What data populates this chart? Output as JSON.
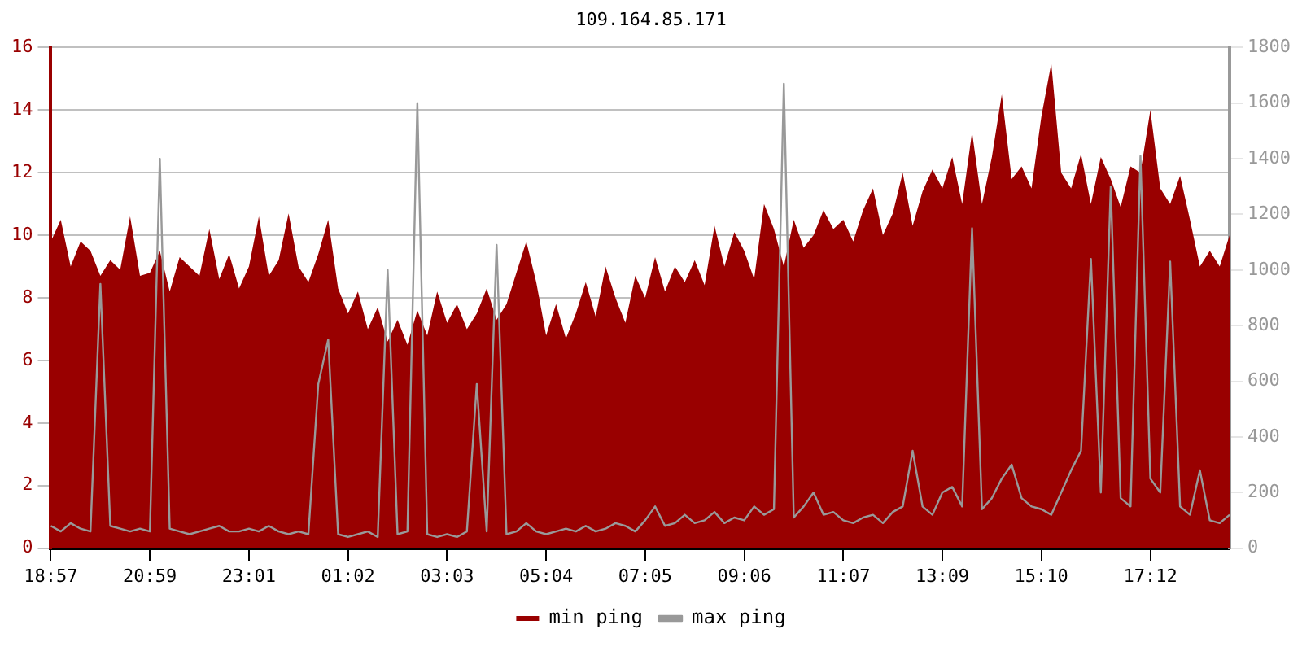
{
  "chart_data": {
    "type": "area",
    "title": "109.164.85.171",
    "categories": [
      "18:57",
      null,
      null,
      null,
      null,
      null,
      null,
      null,
      null,
      null,
      "20:59",
      null,
      null,
      null,
      null,
      null,
      null,
      null,
      null,
      null,
      "23:01",
      null,
      null,
      null,
      null,
      null,
      null,
      null,
      null,
      null,
      "01:02",
      null,
      null,
      null,
      null,
      null,
      null,
      null,
      null,
      null,
      "03:03",
      null,
      null,
      null,
      null,
      null,
      null,
      null,
      null,
      null,
      "05:04",
      null,
      null,
      null,
      null,
      null,
      null,
      null,
      null,
      null,
      "07:05",
      null,
      null,
      null,
      null,
      null,
      null,
      null,
      null,
      null,
      "09:06",
      null,
      null,
      null,
      null,
      null,
      null,
      null,
      null,
      null,
      "11:07",
      null,
      null,
      null,
      null,
      null,
      null,
      null,
      null,
      null,
      "13:09",
      null,
      null,
      null,
      null,
      null,
      null,
      null,
      null,
      null,
      "15:10",
      null,
      null,
      null,
      null,
      null,
      null,
      null,
      null,
      null,
      null,
      "17:12",
      null,
      null,
      null,
      null,
      null,
      null,
      null,
      null
    ],
    "series": [
      {
        "name": "min ping",
        "color": "#990000",
        "values": [
          9.8,
          10.5,
          9.0,
          9.8,
          9.5,
          8.7,
          9.2,
          8.9,
          10.6,
          8.7,
          8.8,
          9.5,
          8.2,
          9.3,
          9.0,
          8.7,
          10.2,
          8.6,
          9.4,
          8.3,
          9.0,
          10.6,
          8.7,
          9.2,
          10.7,
          9.0,
          8.5,
          9.4,
          10.5,
          8.3,
          7.5,
          8.2,
          7.0,
          7.7,
          6.6,
          7.3,
          6.5,
          7.6,
          6.8,
          8.2,
          7.2,
          7.8,
          7.0,
          7.5,
          8.3,
          7.3,
          7.8,
          8.8,
          9.8,
          8.5,
          6.8,
          7.8,
          6.7,
          7.5,
          8.5,
          7.4,
          9.0,
          8.0,
          7.2,
          8.7,
          8.0,
          9.3,
          8.2,
          9.0,
          8.5,
          9.2,
          8.4,
          10.3,
          9.0,
          10.1,
          9.5,
          8.6,
          11.0,
          10.2,
          9.0,
          10.5,
          9.6,
          10.0,
          10.8,
          10.2,
          10.5,
          9.8,
          10.8,
          11.5,
          10.0,
          10.7,
          12.0,
          10.3,
          11.4,
          12.1,
          11.5,
          12.5,
          11.0,
          13.3,
          11.0,
          12.5,
          14.5,
          11.8,
          12.2,
          11.5,
          13.8,
          15.5,
          12.0,
          11.5,
          12.6,
          11.0,
          12.5,
          11.8,
          10.9,
          12.2,
          12.0,
          14.0,
          11.5,
          11.0,
          11.9,
          10.5,
          9.0,
          9.5,
          9.0,
          10.0
        ]
      },
      {
        "name": "max ping",
        "type": "line",
        "axis": "y2",
        "color": "#999999",
        "values": [
          80,
          60,
          90,
          70,
          60,
          950,
          80,
          70,
          60,
          70,
          60,
          1400,
          70,
          60,
          50,
          60,
          70,
          80,
          60,
          60,
          70,
          60,
          80,
          60,
          50,
          60,
          50,
          590,
          750,
          50,
          40,
          50,
          60,
          40,
          1000,
          50,
          60,
          1600,
          50,
          40,
          50,
          40,
          60,
          590,
          60,
          1090,
          50,
          60,
          90,
          60,
          50,
          60,
          70,
          60,
          80,
          60,
          70,
          90,
          80,
          60,
          100,
          150,
          80,
          90,
          120,
          90,
          100,
          130,
          90,
          110,
          100,
          150,
          120,
          140,
          1670,
          110,
          150,
          200,
          120,
          130,
          100,
          90,
          110,
          120,
          90,
          130,
          150,
          350,
          150,
          120,
          200,
          220,
          150,
          1150,
          140,
          180,
          250,
          300,
          180,
          150,
          140,
          120,
          200,
          280,
          350,
          1040,
          200,
          1300,
          180,
          150,
          1410,
          250,
          200,
          1030,
          150,
          120,
          280,
          100,
          90,
          120
        ]
      }
    ],
    "ylim": [
      0,
      16
    ],
    "yticks": [
      0,
      2,
      4,
      6,
      8,
      10,
      12,
      14,
      16
    ],
    "y2lim": [
      0,
      1800
    ],
    "y2ticks": [
      0,
      200,
      400,
      600,
      800,
      1000,
      1200,
      1400,
      1600,
      1800
    ],
    "grid": "y",
    "legend": "bottom"
  }
}
